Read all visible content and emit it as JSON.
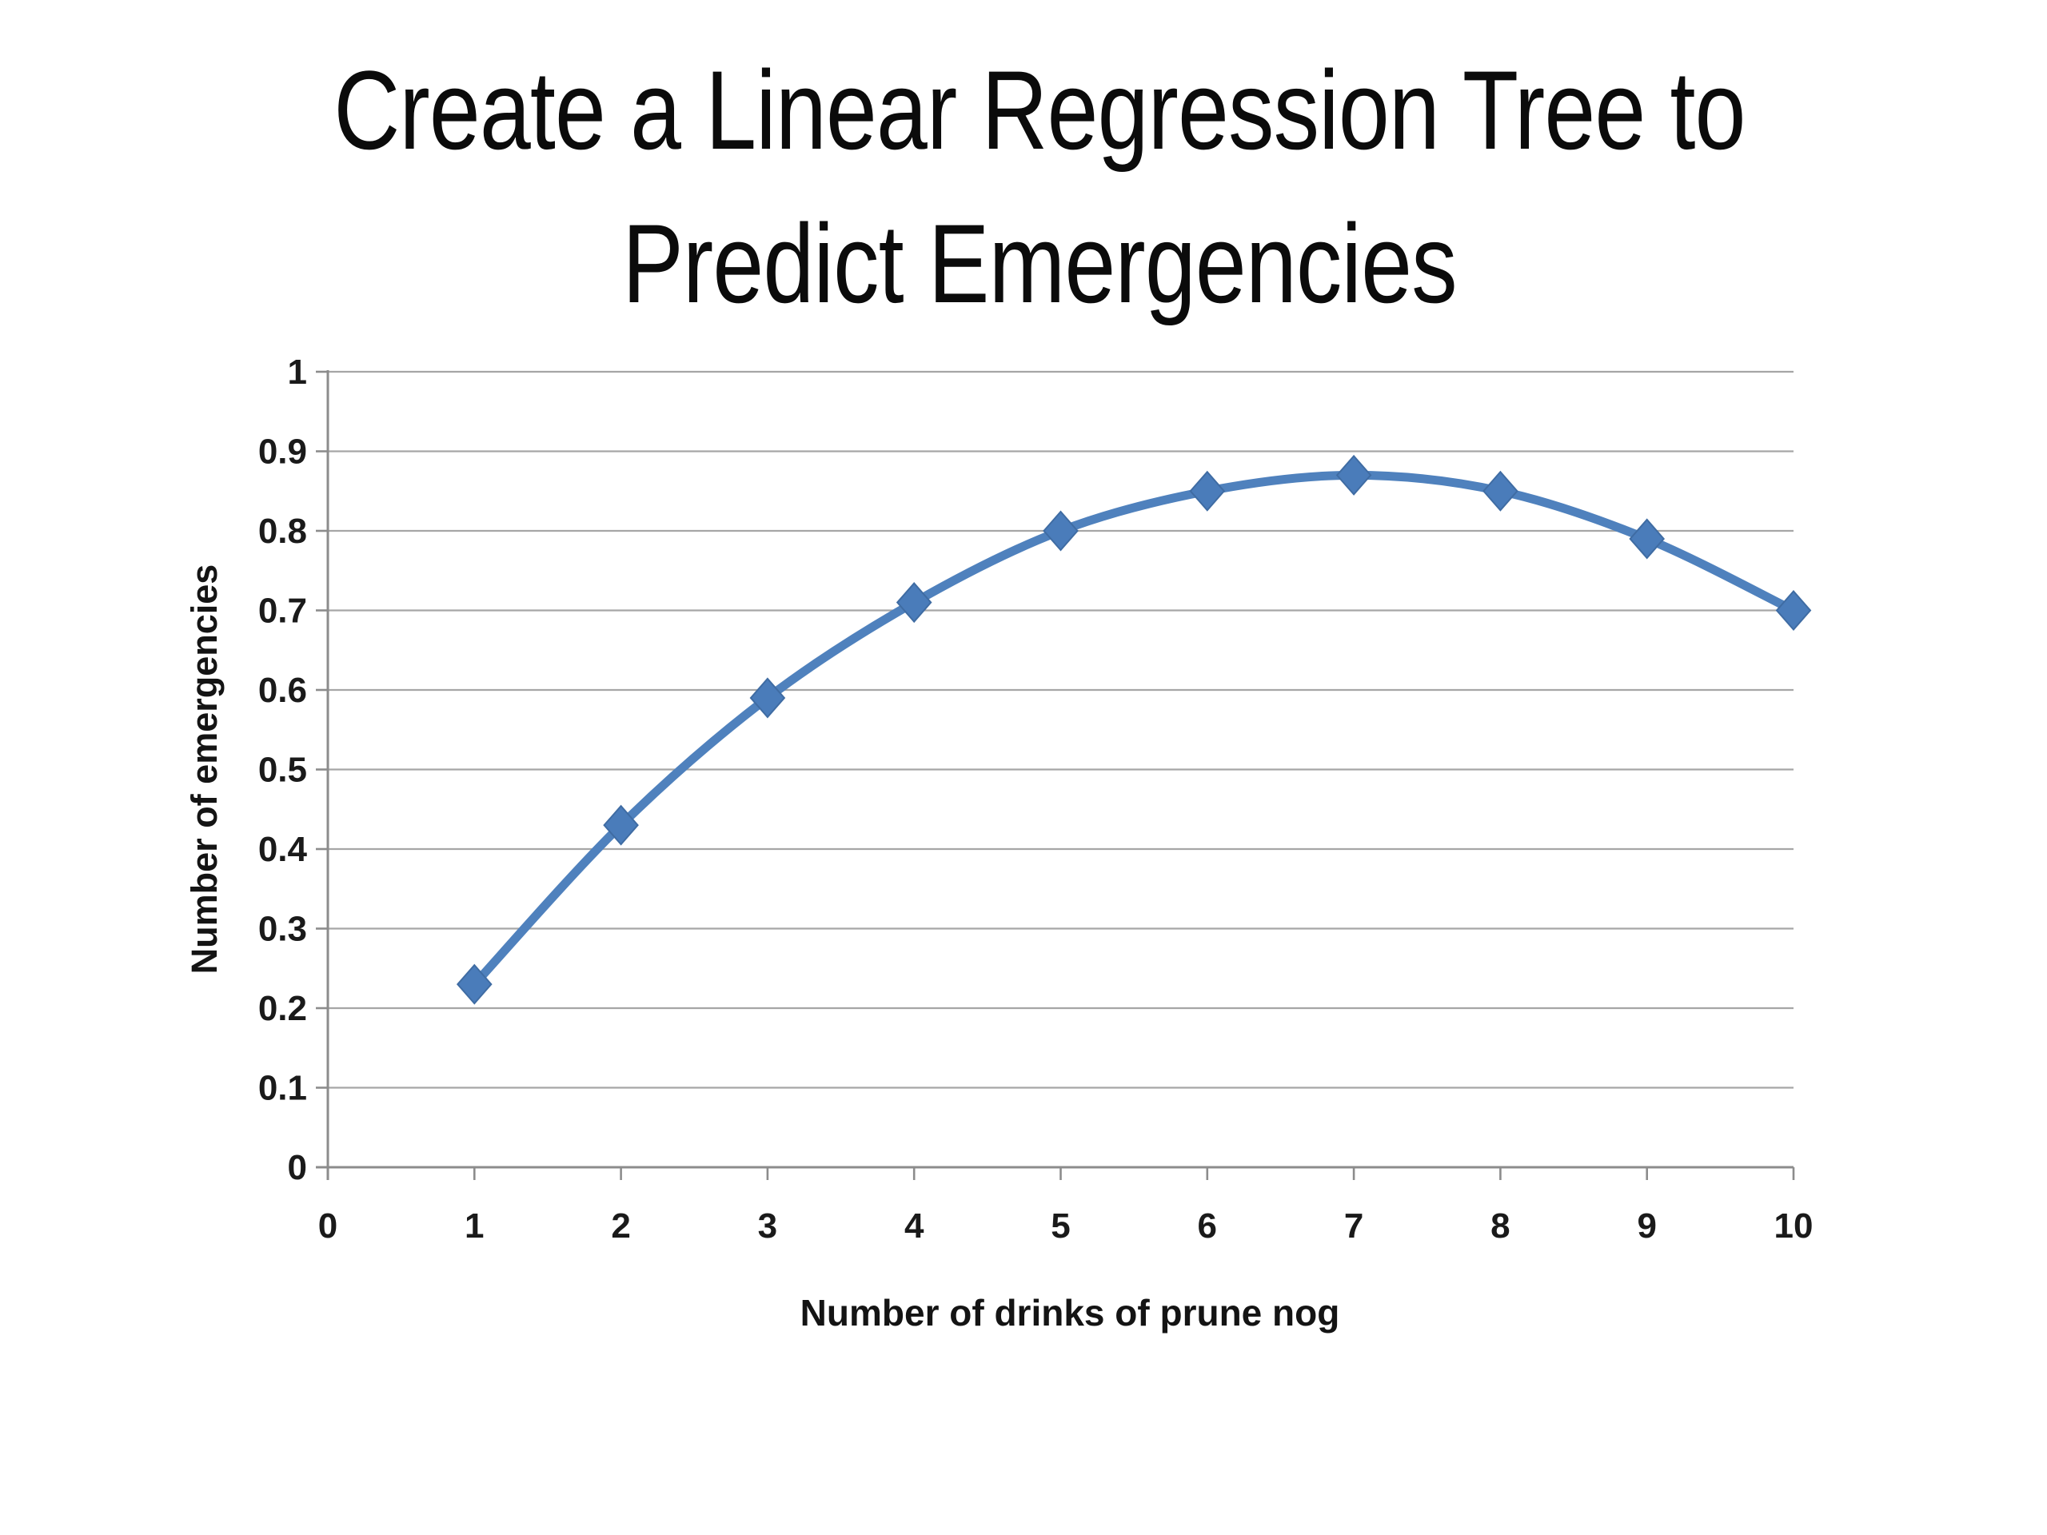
{
  "slide": {
    "title_line1": "Create a Linear Regression Tree to",
    "title_line2": "Predict Emergencies"
  },
  "chart_data": {
    "type": "line",
    "title": "",
    "x": [
      1,
      2,
      3,
      4,
      5,
      6,
      7,
      8,
      9,
      10
    ],
    "series": [
      {
        "name": "Number of emergencies",
        "values": [
          0.23,
          0.43,
          0.59,
          0.71,
          0.8,
          0.85,
          0.87,
          0.85,
          0.79,
          0.7
        ]
      }
    ],
    "xlabel": "Number of drinks of prune nog",
    "ylabel": "Number of emergencies",
    "xlim": [
      0,
      10
    ],
    "ylim": [
      0,
      1
    ],
    "x_ticks": [
      0,
      1,
      2,
      3,
      4,
      5,
      6,
      7,
      8,
      9,
      10
    ],
    "x_tick_labels": [
      "0",
      "1",
      "2",
      "3",
      "4",
      "5",
      "6",
      "7",
      "8",
      "9",
      "10"
    ],
    "y_ticks": [
      0,
      0.1,
      0.2,
      0.3,
      0.4,
      0.5,
      0.6,
      0.7,
      0.8,
      0.9,
      1
    ],
    "y_tick_labels": [
      "0",
      "0.1",
      "0.2",
      "0.3",
      "0.4",
      "0.5",
      "0.6",
      "0.7",
      "0.8",
      "0.9",
      "1"
    ],
    "grid": true,
    "legend": "none",
    "smooth": true,
    "marker": "diamond",
    "colors": {
      "line": "#4f81bd",
      "marker_fill": "#4a7cba",
      "marker_edge": "#3f6ca3",
      "gridline": "#a6a6a6",
      "axis": "#8c8c8c",
      "tick_label": "#1a1a1a"
    }
  }
}
